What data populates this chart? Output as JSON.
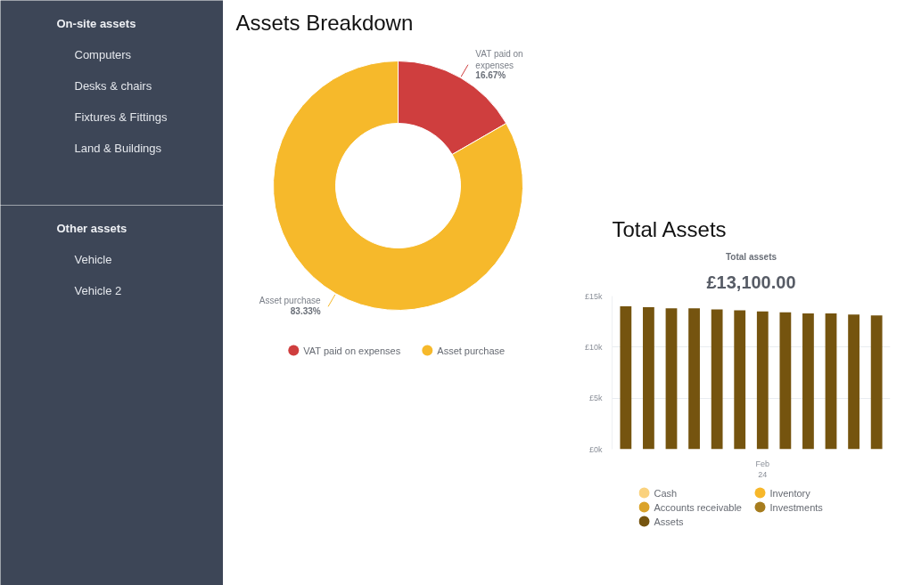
{
  "chart_data": [
    {
      "type": "other",
      "title": "On-site assets",
      "annotations": [
        "Computers",
        "Desks & chairs",
        "Fixtures & Fittings",
        "Land & Buildings"
      ]
    },
    {
      "type": "other",
      "title": "Other assets",
      "annotations": [
        "Vehicle",
        "Vehicle 2"
      ]
    },
    {
      "type": "donut",
      "title": "Assets Breakdown",
      "categories": [
        "VAT paid on expenses",
        "Asset purchase"
      ],
      "values": [
        16.67,
        83.33
      ],
      "colors": [
        "#cf3e3e",
        "#f6b92b"
      ],
      "value_labels": [
        "16.67%",
        "83.33%"
      ],
      "legend": "bottom"
    },
    {
      "type": "bar",
      "title": "Total Assets",
      "subtitle": "Total assets",
      "annotations": [
        "£13,100.00"
      ],
      "categories": [
        null,
        null,
        null,
        null,
        null,
        null,
        "Feb\n24",
        null,
        null,
        null,
        null,
        null
      ],
      "series": [
        {
          "name": "Cash",
          "color": "#fad27e",
          "values": [
            null,
            null,
            null,
            null,
            null,
            null,
            null,
            null,
            null,
            null,
            null,
            null
          ]
        },
        {
          "name": "Inventory",
          "color": "#f7b72a",
          "values": [
            null,
            null,
            null,
            null,
            null,
            null,
            null,
            null,
            null,
            null,
            null,
            null
          ]
        },
        {
          "name": "Accounts receivable",
          "color": "#dba32a",
          "values": [
            null,
            null,
            null,
            null,
            null,
            null,
            null,
            null,
            null,
            null,
            null,
            null
          ]
        },
        {
          "name": "Investments",
          "color": "#a67c1e",
          "values": [
            null,
            null,
            null,
            null,
            null,
            null,
            null,
            null,
            null,
            null,
            null,
            null
          ]
        },
        {
          "name": "Assets",
          "color": "#75540f",
          "values": [
            14.0,
            13.9,
            13.8,
            13.8,
            13.7,
            13.6,
            13.5,
            13.4,
            13.3,
            13.3,
            13.2,
            13.1
          ]
        }
      ],
      "ylim": [
        0,
        15
      ],
      "yticks": [
        {
          "value": 0,
          "label": "£0k"
        },
        {
          "value": 5,
          "label": "£5k"
        },
        {
          "value": 10,
          "label": "£10k"
        },
        {
          "value": 15,
          "label": "£15k"
        }
      ],
      "grid": "y",
      "legend": "bottom"
    }
  ]
}
